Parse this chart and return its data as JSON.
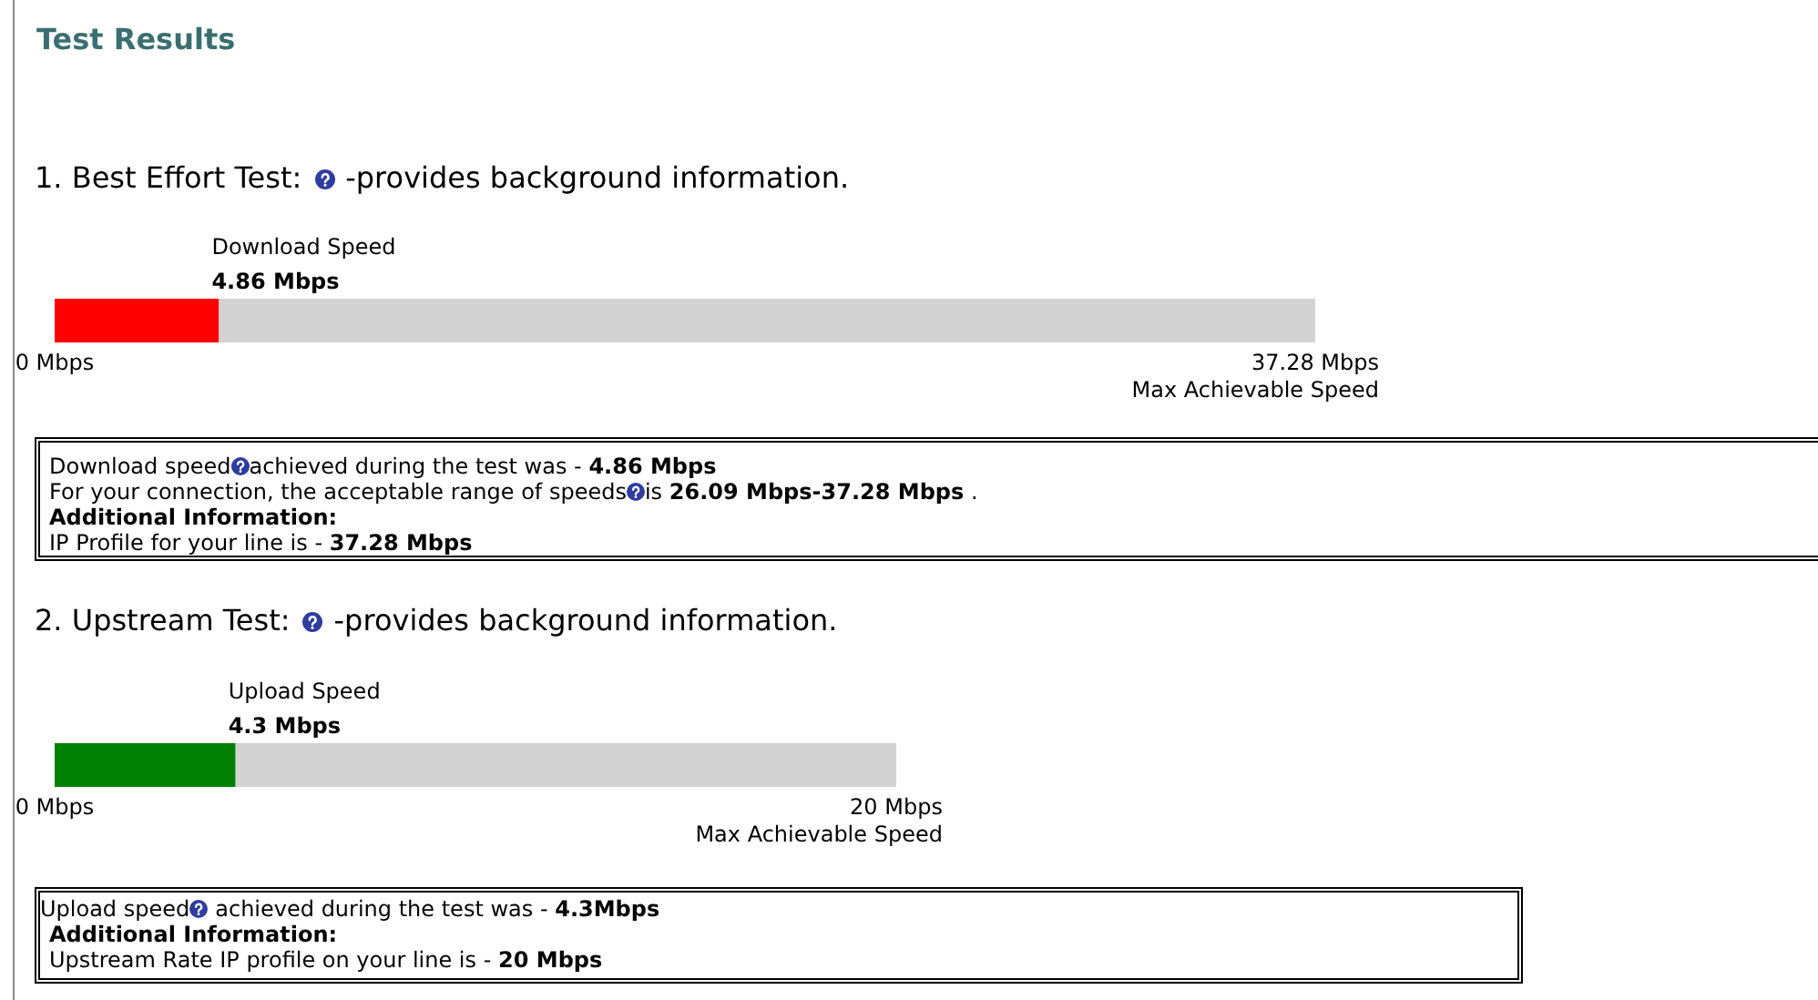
{
  "chart_data": [
    {
      "type": "other",
      "title": "Test Results"
    },
    {
      "type": "bar",
      "orientation": "horizontal",
      "stacked": true,
      "title": "1. Best Effort Test:",
      "subtitle": "-provides background information.",
      "categories": [
        "Download Speed"
      ],
      "series": [
        {
          "color": "#ff0000",
          "values": [
            4.86
          ],
          "value_labels": [
            "4.86 Mbps"
          ]
        },
        {
          "color": "#d3d3d3",
          "values": [
            32.42
          ]
        }
      ],
      "xlim": [
        0,
        37.28
      ],
      "xticks": [
        {
          "value": 0,
          "label": "0 Mbps"
        },
        {
          "value": 37.28,
          "label": "37.28 Mbps"
        }
      ],
      "xlabel": "Max Achievable Speed",
      "annotations": [
        "Download speed",
        "achieved during the test was -",
        "4.86 Mbps",
        "For your connection, the acceptable range of speeds",
        "is",
        "26.09 Mbps-37.28 Mbps",
        ".",
        "Additional Information:",
        "IP Profile for your line is -",
        "37.28 Mbps"
      ]
    },
    {
      "type": "bar",
      "orientation": "horizontal",
      "stacked": true,
      "title": "2. Upstream Test:",
      "subtitle": "-provides background information.",
      "categories": [
        "Upload Speed"
      ],
      "series": [
        {
          "color": "#008000",
          "values": [
            4.3
          ],
          "value_labels": [
            "4.3 Mbps"
          ]
        },
        {
          "color": "#d3d3d3",
          "values": [
            15.7
          ]
        }
      ],
      "xlim": [
        0,
        20
      ],
      "xticks": [
        {
          "value": 0,
          "label": "0 Mbps"
        },
        {
          "value": 20,
          "label": "20 Mbps"
        }
      ],
      "xlabel": "Max Achievable Speed",
      "annotations": [
        "Upload speed",
        "achieved during the test was -",
        "4.3Mbps",
        "Additional Information:",
        "Upstream Rate IP profile on your line is -",
        "20 Mbps"
      ]
    }
  ]
}
